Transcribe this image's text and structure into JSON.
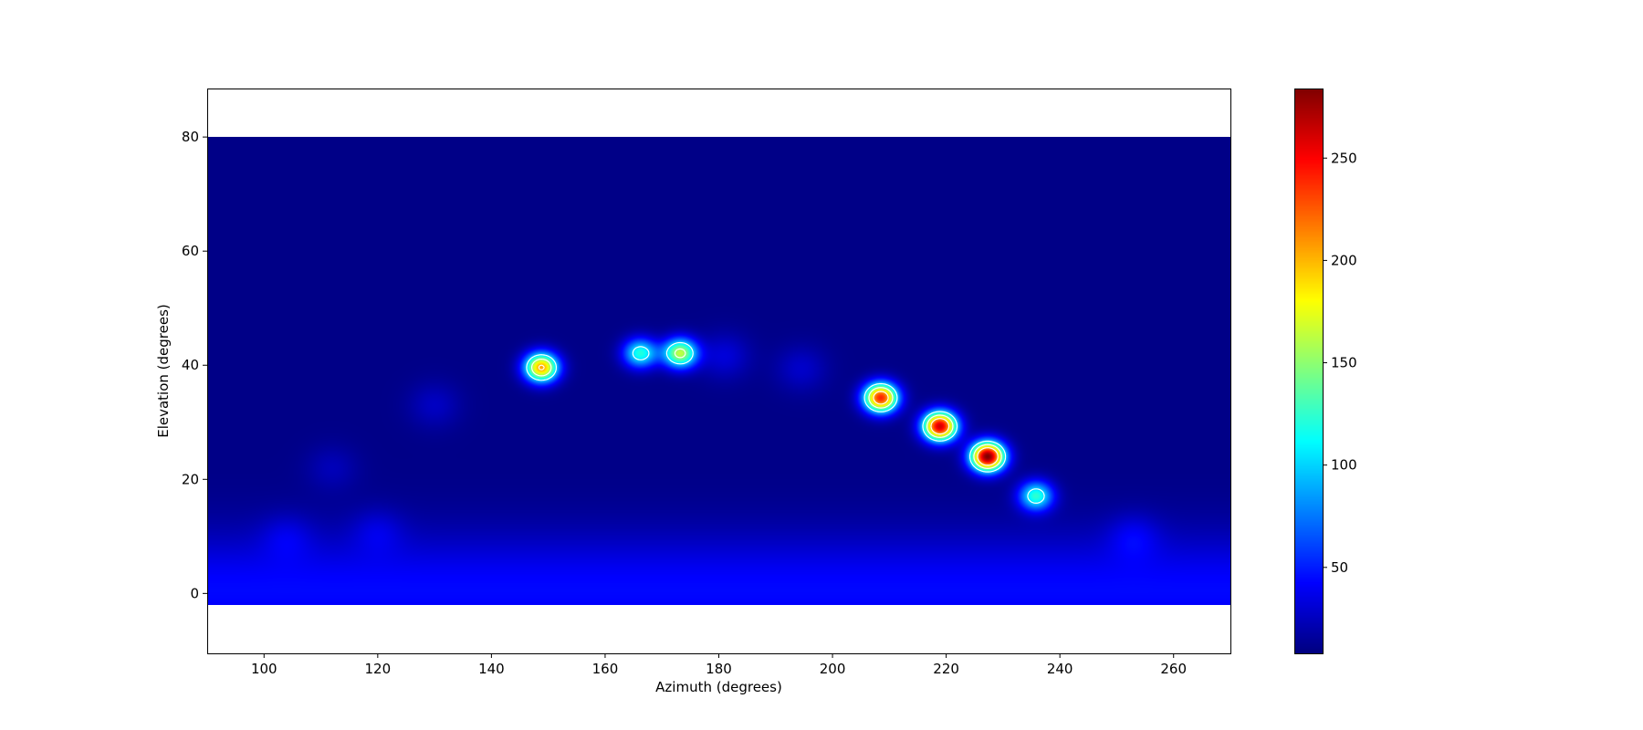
{
  "chart_data": {
    "type": "heatmap",
    "xlabel": "Azimuth (degrees)",
    "ylabel": "Elevation (degrees)",
    "xlim": [
      90,
      270
    ],
    "ylim": [
      -10.5,
      88.5
    ],
    "data_extent": {
      "azimuth": [
        90,
        270
      ],
      "elevation": [
        -2,
        80
      ]
    },
    "x_ticks": [
      100,
      120,
      140,
      160,
      180,
      200,
      220,
      240,
      260
    ],
    "y_ticks": [
      0,
      20,
      40,
      60,
      80
    ],
    "colorbar": {
      "colormap": "jet",
      "range": [
        8,
        284
      ],
      "ticks": [
        50,
        100,
        150,
        200,
        250
      ]
    },
    "contour_color": "#ffffff",
    "contour_levels": [
      100,
      150,
      200
    ],
    "background_level": 10,
    "sources": [
      {
        "azimuth": 148.8,
        "elevation": 39.6,
        "peak": 205
      },
      {
        "azimuth": 166.2,
        "elevation": 42.1,
        "peak": 120
      },
      {
        "azimuth": 173.2,
        "elevation": 42.1,
        "peak": 162
      },
      {
        "azimuth": 208.5,
        "elevation": 34.3,
        "peak": 240
      },
      {
        "azimuth": 218.9,
        "elevation": 29.3,
        "peak": 262
      },
      {
        "azimuth": 227.3,
        "elevation": 24.0,
        "peak": 284
      },
      {
        "azimuth": 235.8,
        "elevation": 17.1,
        "peak": 122
      }
    ],
    "faint_sources": [
      {
        "azimuth": 181.0,
        "elevation": 41.6,
        "peak": 22
      },
      {
        "azimuth": 194.5,
        "elevation": 39.4,
        "peak": 18
      },
      {
        "azimuth": 130.0,
        "elevation": 33.0,
        "peak": 16
      },
      {
        "azimuth": 112.0,
        "elevation": 22.0,
        "peak": 13
      },
      {
        "azimuth": 253.0,
        "elevation": 10.0,
        "peak": 20
      },
      {
        "azimuth": 120.0,
        "elevation": 11.0,
        "peak": 16
      },
      {
        "azimuth": 104.0,
        "elevation": 10.0,
        "peak": 16
      }
    ],
    "horizon_band": {
      "max_value": 44,
      "center_elevation": 0.5,
      "width": 7
    }
  }
}
